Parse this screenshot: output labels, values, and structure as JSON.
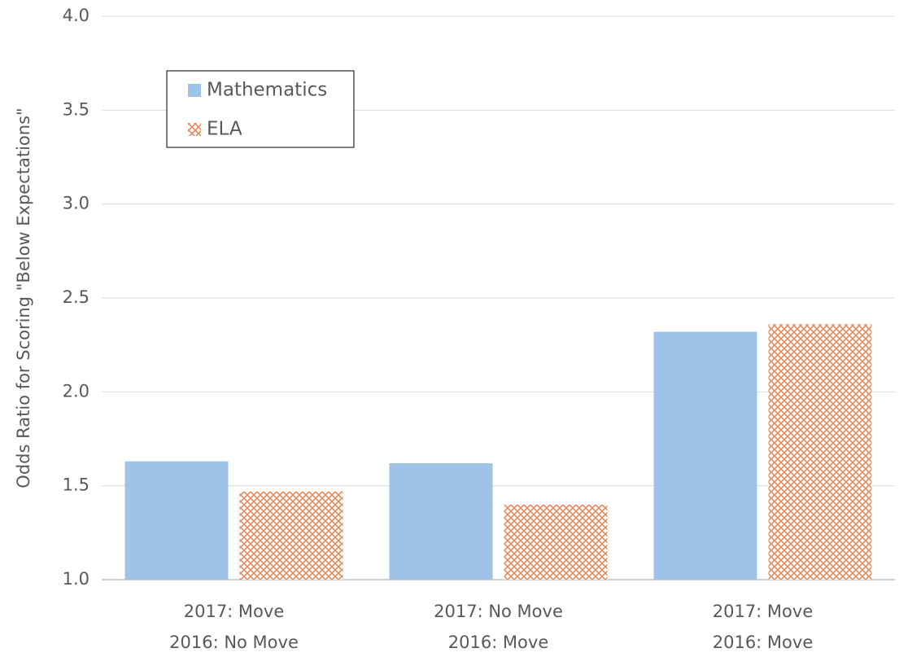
{
  "chart_data": {
    "type": "bar",
    "ylabel": "Odds Ratio for Scoring \"Below Expectations\"",
    "categories": [
      [
        "2017: Move",
        "2016: No Move"
      ],
      [
        "2017: No Move",
        "2016: Move"
      ],
      [
        "2017: Move",
        "2016: Move"
      ]
    ],
    "series": [
      {
        "name": "Mathematics",
        "color": "#9dc3e6",
        "fill": "solid",
        "values": [
          1.63,
          1.62,
          2.32
        ]
      },
      {
        "name": "ELA",
        "color": "#e8895a",
        "fill": "crosshatch",
        "values": [
          1.47,
          1.4,
          2.36
        ]
      }
    ],
    "ylim": [
      1.0,
      4.0
    ],
    "yticks": [
      {
        "value": 1.0,
        "label": "1.0"
      },
      {
        "value": 1.5,
        "label": "1.5"
      },
      {
        "value": 2.0,
        "label": "2.0"
      },
      {
        "value": 2.5,
        "label": "2.5"
      },
      {
        "value": 3.0,
        "label": "3.0"
      },
      {
        "value": 3.5,
        "label": "3.5"
      },
      {
        "value": 4.0,
        "label": "4.0"
      }
    ],
    "grid": true,
    "legend": "upper left"
  }
}
